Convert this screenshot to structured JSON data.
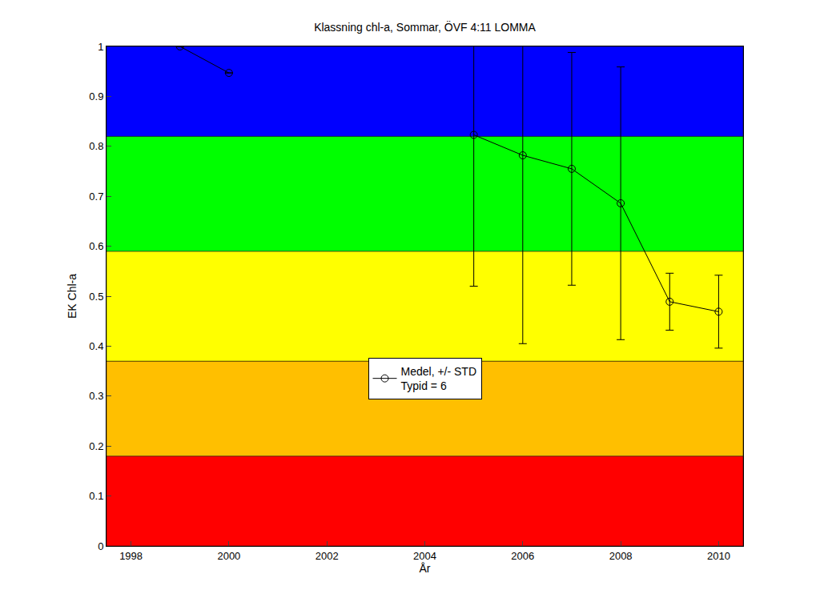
{
  "chart_data": {
    "type": "line",
    "title": "Klassning chl-a, Sommar, ÖVF 4:11 LOMMA",
    "x_label": "År",
    "y_label": "EK Chl-a",
    "x": [
      1999,
      2000,
      2001,
      2002,
      2003,
      2004,
      2005,
      2006,
      2007,
      2008,
      2009,
      2010
    ],
    "series": [
      {
        "name": "Medel, +/- STD",
        "color": "#000000",
        "marker": "circle-open",
        "values": [
          1.0,
          0.947,
          null,
          null,
          null,
          null,
          0.823,
          0.782,
          0.755,
          0.686,
          0.489,
          0.469
        ],
        "std": [
          null,
          null,
          null,
          null,
          null,
          null,
          0.303,
          0.377,
          0.233,
          0.273,
          0.057,
          0.073
        ]
      }
    ],
    "legend_note": "Typid = 6",
    "legend": "center",
    "class_bands": [
      {
        "from": 0,
        "to": 0.18,
        "color": "#ff0000"
      },
      {
        "from": 0.18,
        "to": 0.37,
        "color": "#ffbf00"
      },
      {
        "from": 0.37,
        "to": 0.59,
        "color": "#ffff00"
      },
      {
        "from": 0.59,
        "to": 0.82,
        "color": "#00ff00"
      },
      {
        "from": 0.82,
        "to": 1,
        "color": "#0000ff"
      }
    ],
    "xlim": [
      1997.5,
      2010.5
    ],
    "xticks": [
      1998,
      2000,
      2002,
      2004,
      2006,
      2008,
      2010
    ],
    "ylim": [
      0,
      1
    ],
    "yticks": [
      0,
      0.1,
      0.2,
      0.3,
      0.4,
      0.5,
      0.6,
      0.7,
      0.8,
      0.9,
      1
    ],
    "grid": false
  }
}
